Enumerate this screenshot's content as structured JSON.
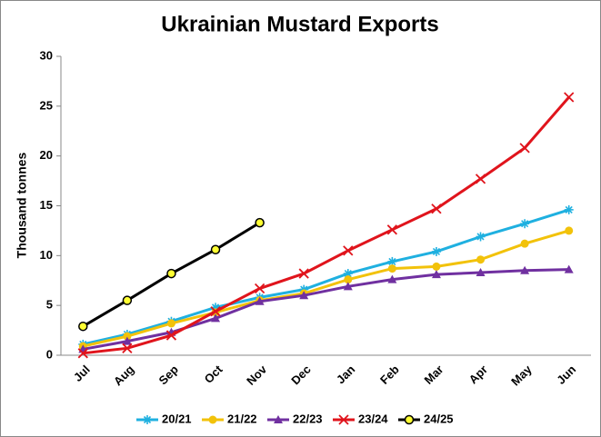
{
  "chart_data": {
    "type": "line",
    "title": "Ukrainian Mustard Exports",
    "y_label": "Thousand tonnes",
    "categories": [
      "Jul",
      "Aug",
      "Sep",
      "Oct",
      "Nov",
      "Dec",
      "Jan",
      "Feb",
      "Mar",
      "Apr",
      "May",
      "Jun"
    ],
    "ylim": [
      0,
      30
    ],
    "yticks": [
      0,
      5,
      10,
      15,
      20,
      25,
      30
    ],
    "legend": "bottom",
    "series": [
      {
        "name": "20/21",
        "color": "#1fb0e0",
        "marker": "asterisk",
        "values": [
          1.1,
          2.1,
          3.4,
          4.8,
          5.8,
          6.6,
          8.2,
          9.4,
          10.4,
          11.9,
          13.2,
          14.6
        ]
      },
      {
        "name": "21/22",
        "color": "#f2c20a",
        "marker": "circle",
        "values": [
          0.9,
          1.9,
          3.2,
          4.3,
          5.5,
          6.2,
          7.6,
          8.7,
          8.9,
          9.6,
          11.2,
          12.5
        ]
      },
      {
        "name": "22/23",
        "color": "#7030a0",
        "marker": "triangle",
        "values": [
          0.6,
          1.4,
          2.3,
          3.7,
          5.4,
          6.0,
          6.9,
          7.6,
          8.1,
          8.3,
          8.5,
          8.6
        ]
      },
      {
        "name": "23/24",
        "color": "#e0141c",
        "marker": "x",
        "values": [
          0.2,
          0.7,
          2.0,
          4.4,
          6.7,
          8.2,
          10.5,
          12.6,
          14.7,
          17.7,
          20.8,
          25.9
        ]
      },
      {
        "name": "24/25",
        "color": "#000000",
        "marker": "dot",
        "values": [
          2.9,
          5.5,
          8.2,
          10.6,
          13.3,
          null,
          null,
          null,
          null,
          null,
          null,
          null
        ]
      }
    ]
  }
}
